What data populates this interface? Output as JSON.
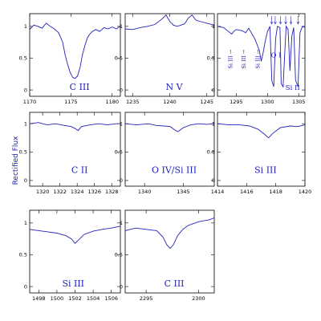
{
  "figure": {
    "ylabel": "Rectified Flux",
    "line_color": "#2222bb"
  },
  "chart_data": [
    {
      "type": "line",
      "panel_label": "C III",
      "xlim": [
        1170,
        1181
      ],
      "ylim": [
        -0.1,
        1.2
      ],
      "xticks": [
        1170,
        1175,
        1180
      ],
      "yticks": [
        0,
        0.5,
        1
      ],
      "series": [
        {
          "x": [
            1170.0,
            1170.5,
            1171.0,
            1171.5,
            1172.0,
            1172.5,
            1173.0,
            1173.5,
            1174.0,
            1174.3,
            1174.6,
            1174.9,
            1175.2,
            1175.5,
            1175.8,
            1176.1,
            1176.4,
            1176.7,
            1177.0,
            1177.3,
            1177.6,
            1178.0,
            1178.5,
            1179.0,
            1179.5,
            1180.0,
            1180.5,
            1181.0
          ],
          "y": [
            0.95,
            1.02,
            1.0,
            0.97,
            1.05,
            1.0,
            0.96,
            0.9,
            0.75,
            0.55,
            0.4,
            0.28,
            0.2,
            0.18,
            0.22,
            0.35,
            0.55,
            0.7,
            0.82,
            0.88,
            0.92,
            0.95,
            0.92,
            0.98,
            0.96,
            0.99,
            0.96,
            1.0
          ]
        }
      ]
    },
    {
      "type": "line",
      "panel_label": "N V",
      "xlim": [
        1234,
        1246
      ],
      "ylim": [
        -0.1,
        1.2
      ],
      "xticks": [
        1235,
        1240,
        1245
      ],
      "yticks": [
        0,
        0.5,
        1
      ],
      "series": [
        {
          "x": [
            1234.0,
            1235.0,
            1236.0,
            1237.0,
            1238.0,
            1239.0,
            1239.5,
            1240.0,
            1240.5,
            1241.0,
            1241.5,
            1242.0,
            1242.5,
            1243.0,
            1243.5,
            1244.0,
            1245.0,
            1246.0
          ],
          "y": [
            0.96,
            0.95,
            0.98,
            1.0,
            1.03,
            1.12,
            1.18,
            1.08,
            1.02,
            1.0,
            1.02,
            1.04,
            1.13,
            1.18,
            1.1,
            1.08,
            1.05,
            1.02
          ]
        }
      ]
    },
    {
      "type": "line",
      "panel_label": "",
      "xlim": [
        1292,
        1306
      ],
      "ylim": [
        -0.1,
        1.2
      ],
      "xticks": [
        1295,
        1300,
        1305
      ],
      "yticks": [
        0,
        0.5,
        1
      ],
      "annotations": [
        "Si III",
        "Si III",
        "Si III",
        "O I",
        "Si II"
      ],
      "series": [
        {
          "x": [
            1292.0,
            1293.0,
            1294.0,
            1294.3,
            1294.6,
            1295.0,
            1296.0,
            1296.5,
            1297.0,
            1298.0,
            1298.7,
            1299.0,
            1299.3,
            1299.6,
            1300.0,
            1300.4,
            1300.7,
            1301.0,
            1301.3,
            1301.6,
            1302.0,
            1302.2,
            1302.5,
            1302.8,
            1303.0,
            1303.3,
            1303.6,
            1303.9,
            1304.2,
            1304.5,
            1304.9,
            1305.2,
            1305.6,
            1306.0
          ],
          "y": [
            1.0,
            0.98,
            0.9,
            0.88,
            0.92,
            0.95,
            0.93,
            0.9,
            0.97,
            0.8,
            0.62,
            0.45,
            0.58,
            0.75,
            0.92,
            1.0,
            0.15,
            0.05,
            0.8,
            1.0,
            0.98,
            0.1,
            0.05,
            0.65,
            1.0,
            0.95,
            0.3,
            0.85,
            0.98,
            0.15,
            0.05,
            0.9,
            1.0,
            0.98
          ]
        }
      ]
    },
    {
      "type": "line",
      "panel_label": "C II",
      "xlim": [
        1318.5,
        1329
      ],
      "ylim": [
        -0.1,
        1.2
      ],
      "xticks": [
        1320,
        1322,
        1324,
        1326,
        1328
      ],
      "yticks": [
        0,
        0.5,
        1
      ],
      "series": [
        {
          "x": [
            1318.5,
            1319.5,
            1320.5,
            1321.5,
            1322.5,
            1323.3,
            1323.7,
            1324.1,
            1324.5,
            1325.5,
            1326.5,
            1327.5,
            1328.5,
            1329.0
          ],
          "y": [
            1.0,
            1.02,
            0.98,
            1.0,
            0.97,
            0.95,
            0.92,
            0.88,
            0.95,
            0.98,
            1.0,
            0.98,
            1.0,
            1.0
          ]
        }
      ]
    },
    {
      "type": "line",
      "panel_label": "O IV/Si III",
      "xlim": [
        1337.5,
        1349
      ],
      "ylim": [
        -0.1,
        1.2
      ],
      "xticks": [
        1340,
        1345
      ],
      "yticks": [
        0,
        0.5,
        1
      ],
      "series": [
        {
          "x": [
            1337.5,
            1339.0,
            1340.5,
            1341.5,
            1342.5,
            1343.3,
            1343.8,
            1344.3,
            1345.0,
            1346.0,
            1347.0,
            1348.0,
            1349.0
          ],
          "y": [
            1.0,
            0.98,
            1.0,
            0.97,
            0.96,
            0.95,
            0.9,
            0.86,
            0.93,
            0.98,
            1.0,
            0.99,
            1.0
          ]
        }
      ]
    },
    {
      "type": "line",
      "panel_label": "Si III",
      "xlim": [
        1414,
        1420
      ],
      "ylim": [
        -0.1,
        1.2
      ],
      "xticks": [
        1414,
        1416,
        1418,
        1420
      ],
      "yticks": [
        0,
        0.5,
        1
      ],
      "series": [
        {
          "x": [
            1414.0,
            1414.8,
            1415.5,
            1416.2,
            1416.8,
            1417.2,
            1417.5,
            1417.8,
            1418.3,
            1419.0,
            1419.5,
            1420.0
          ],
          "y": [
            1.0,
            0.98,
            0.98,
            0.96,
            0.9,
            0.82,
            0.75,
            0.83,
            0.93,
            0.96,
            0.95,
            0.98
          ]
        }
      ]
    },
    {
      "type": "line",
      "panel_label": "Si III",
      "xlim": [
        1497,
        1507
      ],
      "ylim": [
        -0.1,
        1.2
      ],
      "xticks": [
        1498,
        1500,
        1502,
        1504,
        1506
      ],
      "yticks": [
        0,
        0.5,
        1
      ],
      "series": [
        {
          "x": [
            1497.0,
            1498.0,
            1499.0,
            1500.0,
            1501.0,
            1501.6,
            1502.0,
            1502.5,
            1503.0,
            1504.0,
            1505.0,
            1506.0,
            1507.0
          ],
          "y": [
            0.9,
            0.88,
            0.86,
            0.84,
            0.8,
            0.75,
            0.68,
            0.75,
            0.82,
            0.87,
            0.9,
            0.92,
            0.95
          ]
        }
      ]
    },
    {
      "type": "line",
      "panel_label": "C III",
      "xlim": [
        2293,
        2301.5
      ],
      "ylim": [
        -0.1,
        1.2
      ],
      "xticks": [
        2295,
        2300
      ],
      "yticks": [
        0,
        0.5,
        1
      ],
      "series": [
        {
          "x": [
            2293.0,
            2294.0,
            2295.0,
            2296.0,
            2296.6,
            2297.0,
            2297.3,
            2297.6,
            2298.0,
            2298.5,
            2299.0,
            2300.0,
            2301.0,
            2301.5
          ],
          "y": [
            0.88,
            0.92,
            0.9,
            0.88,
            0.78,
            0.65,
            0.6,
            0.66,
            0.8,
            0.9,
            0.96,
            1.02,
            1.05,
            1.08
          ]
        }
      ]
    }
  ]
}
